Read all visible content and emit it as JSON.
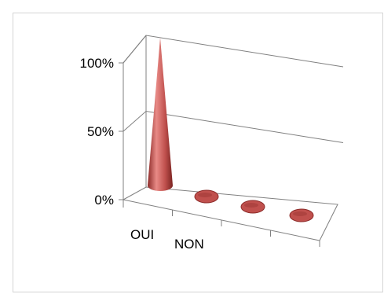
{
  "chart_data": {
    "type": "bar",
    "shape": "3d-cone",
    "categories": [
      "OUI",
      "NON",
      "",
      ""
    ],
    "values": [
      100,
      0,
      0,
      0
    ],
    "yticks": [
      "0%",
      "50%",
      "100%"
    ],
    "ylim": [
      0,
      100
    ],
    "grid": true,
    "legend": "none",
    "colors": {
      "series": "#c0504d",
      "series_dark": "#8c2a28",
      "series_light": "#e88a86",
      "grid": "#808080",
      "frame": "#d4d4d4"
    }
  }
}
